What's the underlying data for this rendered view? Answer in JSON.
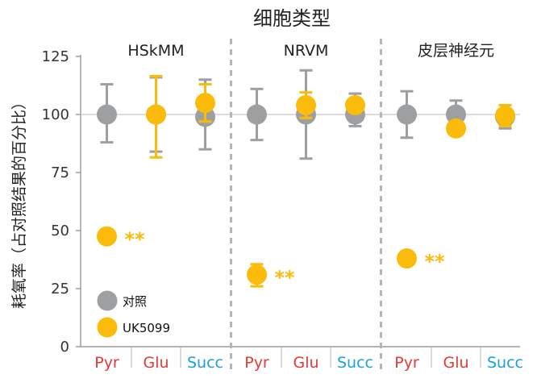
{
  "chart_data": {
    "type": "scatter",
    "title": "细胞类型",
    "ylabel": "耗氧率（占对照结果的百分比）",
    "ylim": [
      0,
      125
    ],
    "yticks": [
      0,
      25,
      50,
      75,
      100,
      125
    ],
    "gridline_at": 100,
    "legend_position": "bottom-left",
    "colors": {
      "control": "#9e9fa1",
      "uk5099": "#fbbb0b",
      "pyr": "#e53935",
      "glu": "#e53935",
      "succ": "#1aa0dc"
    },
    "panels": [
      "HSkMM",
      "NRVM",
      "皮层神经元"
    ],
    "categories": [
      "Pyr",
      "Glu",
      "Succ"
    ],
    "legend": [
      {
        "label": "对照",
        "series": "control"
      },
      {
        "label": "UK5099",
        "series": "uk5099"
      }
    ],
    "series": [
      {
        "key": "control",
        "name": "对照",
        "points": [
          {
            "panel": "HSkMM",
            "category": "Pyr",
            "mean": 100,
            "low": 88,
            "high": 113
          },
          {
            "panel": "HSkMM",
            "category": "Glu",
            "mean": 100,
            "low": 84,
            "high": 116
          },
          {
            "panel": "HSkMM",
            "category": "Succ",
            "mean": 99,
            "low": 85,
            "high": 115
          },
          {
            "panel": "NRVM",
            "category": "Pyr",
            "mean": 100,
            "low": 89,
            "high": 111
          },
          {
            "panel": "NRVM",
            "category": "Glu",
            "mean": 100,
            "low": 81,
            "high": 119
          },
          {
            "panel": "NRVM",
            "category": "Succ",
            "mean": 100,
            "low": 95,
            "high": 109
          },
          {
            "panel": "皮层神经元",
            "category": "Pyr",
            "mean": 100,
            "low": 90,
            "high": 110
          },
          {
            "panel": "皮层神经元",
            "category": "Glu",
            "mean": 100,
            "low": 94,
            "high": 106
          },
          {
            "panel": "皮层神经元",
            "category": "Succ",
            "mean": 99,
            "low": 94,
            "high": 104
          }
        ]
      },
      {
        "key": "uk5099",
        "name": "UK5099",
        "points": [
          {
            "panel": "HSkMM",
            "category": "Pyr",
            "mean": 47.5,
            "low": 47.5,
            "high": 47.5,
            "sig": "**"
          },
          {
            "panel": "HSkMM",
            "category": "Glu",
            "mean": 100,
            "low": 81.5,
            "high": 116.5
          },
          {
            "panel": "HSkMM",
            "category": "Succ",
            "mean": 105,
            "low": 97,
            "high": 113
          },
          {
            "panel": "NRVM",
            "category": "Pyr",
            "mean": 31,
            "low": 26,
            "high": 35.5,
            "sig": "**"
          },
          {
            "panel": "NRVM",
            "category": "Glu",
            "mean": 104,
            "low": 98.5,
            "high": 109.5
          },
          {
            "panel": "NRVM",
            "category": "Succ",
            "mean": 104,
            "low": 104,
            "high": 104
          },
          {
            "panel": "皮层神经元",
            "category": "Pyr",
            "mean": 38,
            "low": 38,
            "high": 38,
            "sig": "**"
          },
          {
            "panel": "皮层神经元",
            "category": "Glu",
            "mean": 94,
            "low": 91,
            "high": 97
          },
          {
            "panel": "皮层神经元",
            "category": "Succ",
            "mean": 99.5,
            "low": 95,
            "high": 104
          }
        ]
      }
    ]
  }
}
